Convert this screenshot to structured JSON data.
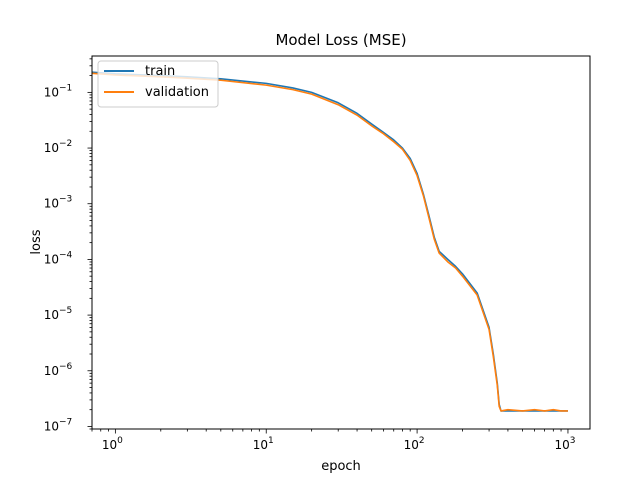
{
  "chart_data": {
    "type": "line",
    "title": "Model Loss (MSE)",
    "xlabel": "epoch",
    "ylabel": "loss",
    "xscale": "log",
    "yscale": "log",
    "xlim": [
      0.7,
      1400
    ],
    "ylim": [
      9e-08,
      0.45
    ],
    "grid": false,
    "legend": "top-left",
    "x_ticks": [
      {
        "value": 1,
        "base": "10",
        "exp": "0"
      },
      {
        "value": 10,
        "base": "10",
        "exp": "1"
      },
      {
        "value": 100,
        "base": "10",
        "exp": "2"
      },
      {
        "value": 1000,
        "base": "10",
        "exp": "3"
      }
    ],
    "y_ticks": [
      {
        "value": 1e-07,
        "base": "10",
        "exp": "−7"
      },
      {
        "value": 1e-06,
        "base": "10",
        "exp": "−6"
      },
      {
        "value": 1e-05,
        "base": "10",
        "exp": "−5"
      },
      {
        "value": 0.0001,
        "base": "10",
        "exp": "−4"
      },
      {
        "value": 0.001,
        "base": "10",
        "exp": "−3"
      },
      {
        "value": 0.01,
        "base": "10",
        "exp": "−2"
      },
      {
        "value": 0.1,
        "base": "10",
        "exp": "−1"
      }
    ],
    "series": [
      {
        "name": "train",
        "color": "#1f77b4",
        "x": [
          0.7,
          1,
          2,
          3,
          5,
          10,
          15,
          20,
          30,
          40,
          50,
          60,
          70,
          80,
          90,
          100,
          110,
          120,
          130,
          140,
          160,
          180,
          200,
          250,
          300,
          320,
          340,
          350,
          360,
          400,
          500,
          600,
          700,
          800,
          900,
          1000
        ],
        "y": [
          0.23,
          0.215,
          0.2,
          0.19,
          0.175,
          0.145,
          0.12,
          0.1,
          0.065,
          0.042,
          0.027,
          0.019,
          0.014,
          0.01,
          0.0065,
          0.0035,
          0.0015,
          0.0006,
          0.00025,
          0.00014,
          0.0001,
          7.5e-05,
          5.5e-05,
          2.5e-05,
          6e-06,
          2e-06,
          6e-07,
          2.5e-07,
          1.9e-07,
          1.9e-07,
          1.9e-07,
          1.9e-07,
          1.9e-07,
          1.9e-07,
          1.9e-07,
          1.9e-07
        ]
      },
      {
        "name": "validation",
        "color": "#ff7f0e",
        "x": [
          0.7,
          1,
          2,
          3,
          5,
          10,
          15,
          20,
          30,
          40,
          50,
          60,
          70,
          80,
          90,
          100,
          110,
          120,
          130,
          140,
          160,
          180,
          200,
          250,
          300,
          320,
          340,
          350,
          360,
          400,
          500,
          600,
          700,
          800,
          900,
          1000
        ],
        "y": [
          0.22,
          0.205,
          0.19,
          0.18,
          0.165,
          0.135,
          0.112,
          0.093,
          0.06,
          0.039,
          0.025,
          0.018,
          0.013,
          0.0095,
          0.006,
          0.0032,
          0.0014,
          0.00055,
          0.00023,
          0.00013,
          9e-05,
          7e-05,
          5e-05,
          2.3e-05,
          5.5e-06,
          1.8e-06,
          5.5e-07,
          2.3e-07,
          1.9e-07,
          2e-07,
          1.9e-07,
          2e-07,
          1.9e-07,
          2e-07,
          1.9e-07,
          1.9e-07
        ]
      }
    ]
  }
}
